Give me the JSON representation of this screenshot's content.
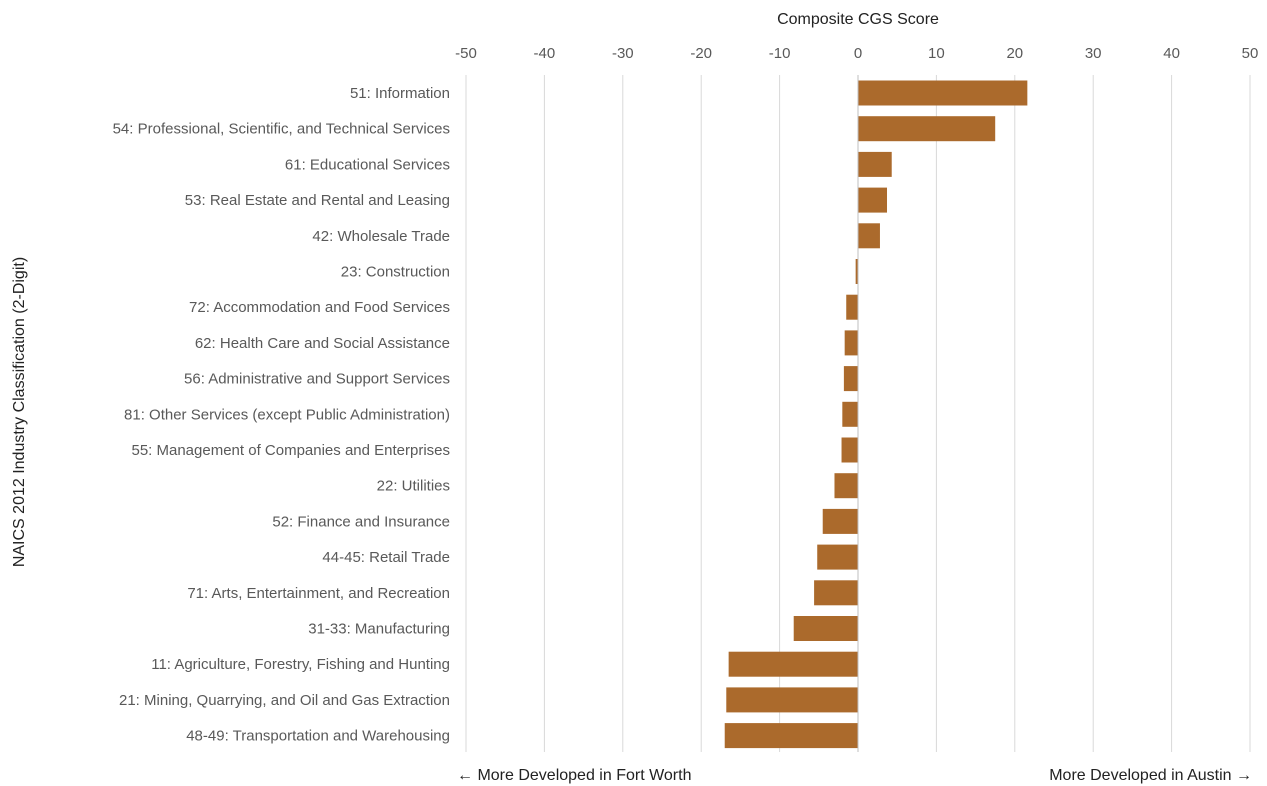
{
  "chart_data": {
    "type": "bar",
    "orientation": "horizontal",
    "xlabel": "Composite CGS Score",
    "ylabel": "NAICS 2012 Industry Classification (2-Digit)",
    "xlim": [
      -50,
      50
    ],
    "xticks": [
      -50,
      -40,
      -30,
      -20,
      -10,
      0,
      10,
      20,
      30,
      40,
      50
    ],
    "x_axis_position": "top",
    "grid": true,
    "legend": "none",
    "bar_color": "#ab6a2c",
    "categories": [
      "51: Information",
      "54: Professional, Scientific, and Technical Services",
      "61: Educational Services",
      "53: Real Estate and Rental and Leasing",
      "42: Wholesale Trade",
      "23: Construction",
      "72: Accommodation and Food Services",
      "62: Health Care and Social Assistance",
      "56: Administrative and Support Services",
      "81: Other Services (except Public Administration)",
      "55: Management of Companies and Enterprises",
      "22: Utilities",
      "52: Finance and Insurance",
      "44-45: Retail Trade",
      "71: Arts, Entertainment, and Recreation",
      "31-33: Manufacturing",
      "11: Agriculture, Forestry, Fishing and Hunting",
      "21: Mining, Quarrying, and Oil and Gas Extraction",
      "48-49: Transportation and Warehousing"
    ],
    "values": [
      21.6,
      17.5,
      4.3,
      3.7,
      2.8,
      -0.3,
      -1.5,
      -1.7,
      -1.8,
      -2.0,
      -2.1,
      -3.0,
      -4.5,
      -5.2,
      -5.6,
      -8.2,
      -16.5,
      -16.8,
      -17.0
    ],
    "annotations": {
      "left": "← More Developed in Fort Worth",
      "right": "More Developed in Austin →"
    }
  }
}
